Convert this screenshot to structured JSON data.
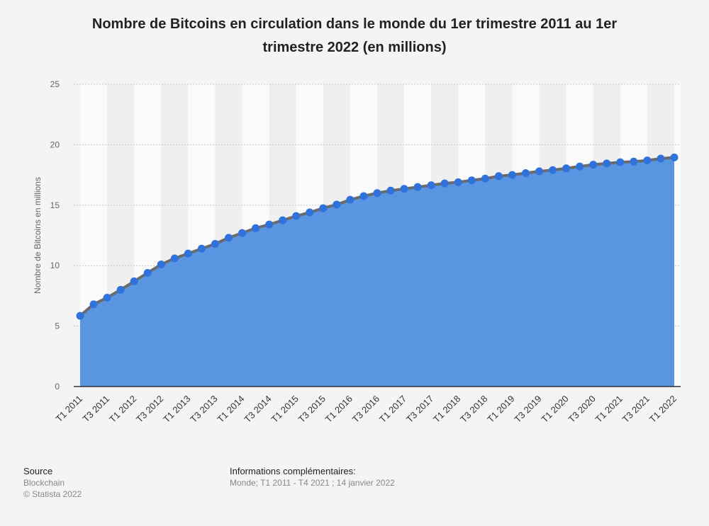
{
  "chart_data": {
    "type": "area",
    "title": "Nombre de Bitcoins en circulation dans le monde du 1er trimestre 2011 au 1er trimestre 2022 (en millions)",
    "y_label": "Nombre de Bitcoins en millions",
    "categories": [
      "T1 2011",
      null,
      "T3 2011",
      null,
      "T1 2012",
      null,
      "T3 2012",
      null,
      "T1 2013",
      null,
      "T3 2013",
      null,
      "T1 2014",
      null,
      "T3 2014",
      null,
      "T1 2015",
      null,
      "T3 2015",
      null,
      "T1 2016",
      null,
      "T3 2016",
      null,
      "T1 2017",
      null,
      "T3 2017",
      null,
      "T1 2018",
      null,
      "T3 2018",
      null,
      "T1 2019",
      null,
      "T3 2019",
      null,
      "T1 2020",
      null,
      "T3 2020",
      null,
      "T1 2021",
      null,
      "T3 2021",
      null,
      "T1 2022"
    ],
    "values": [
      5.85,
      6.8,
      7.35,
      8.0,
      8.7,
      9.4,
      10.1,
      10.6,
      11.0,
      11.4,
      11.8,
      12.3,
      12.7,
      13.1,
      13.4,
      13.75,
      14.1,
      14.4,
      14.75,
      15.05,
      15.45,
      15.75,
      16.0,
      16.2,
      16.35,
      16.5,
      16.65,
      16.8,
      16.9,
      17.05,
      17.2,
      17.4,
      17.5,
      17.65,
      17.8,
      17.9,
      18.05,
      18.2,
      18.35,
      18.45,
      18.55,
      18.6,
      18.7,
      18.85,
      18.95
    ],
    "color": "#5a95e2",
    "line_color": "#6b6b6b",
    "marker_color": "#2f72dc",
    "ylim": [
      0,
      25
    ],
    "yticks": [
      0,
      5,
      10,
      15,
      20,
      25
    ],
    "grid": true
  },
  "footer": {
    "source_heading": "Source",
    "source": "Blockchain",
    "copyright": "© Statista 2022",
    "info_heading": "Informations complémentaires:",
    "info": "Monde; T1 2011 - T4 2021 ; 14 janvier 2022"
  }
}
